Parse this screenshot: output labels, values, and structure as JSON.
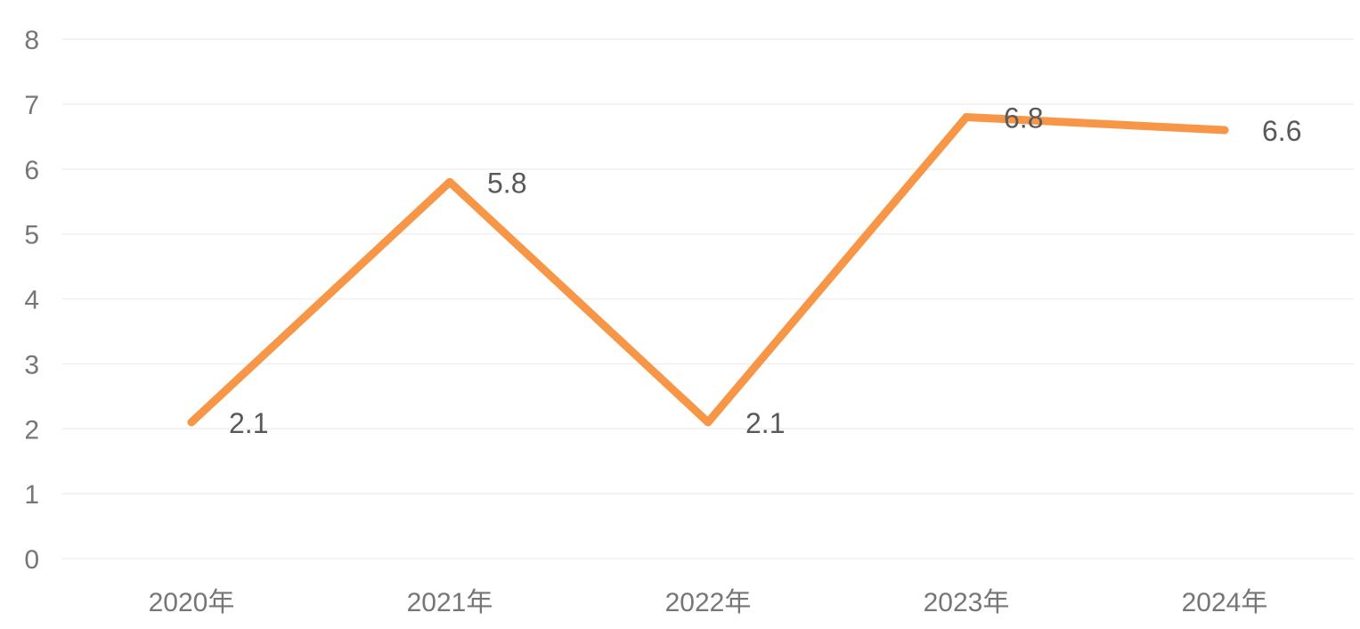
{
  "chart_data": {
    "type": "line",
    "title": "",
    "xlabel": "",
    "ylabel": "",
    "categories": [
      "2020年",
      "2021年",
      "2022年",
      "2023年",
      "2024年"
    ],
    "series": [
      {
        "values": [
          2.1,
          5.8,
          2.1,
          6.8,
          6.6
        ],
        "color": "#F79646"
      }
    ],
    "ylim": [
      0,
      8
    ],
    "yticks": [
      "0",
      "1",
      "2",
      "3",
      "4",
      "5",
      "6",
      "7",
      "8"
    ],
    "data_labels": [
      "2.1",
      "5.8",
      "2.1",
      "6.8",
      "6.6"
    ],
    "grid": true,
    "legend": "none"
  }
}
